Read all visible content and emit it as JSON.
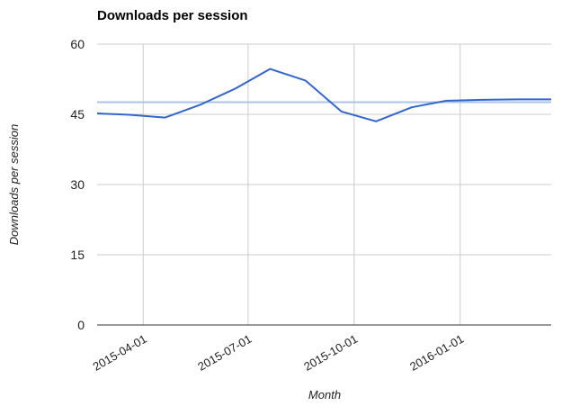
{
  "chart_data": {
    "type": "line",
    "title": "Downloads per session",
    "xlabel": "Month",
    "ylabel": "Downloads per session",
    "ylim": [
      0,
      60
    ],
    "yticks": [
      "0",
      "15",
      "30",
      "45",
      "60"
    ],
    "xlim": [
      "2015-02-20",
      "2016-03-20"
    ],
    "xticks": [
      "2015-04-01",
      "2015-07-01",
      "2015-10-01",
      "2016-01-01"
    ],
    "grid": true,
    "series": [
      {
        "color": "#3366cc",
        "x": [
          "2015-02-20",
          "2015-03-20",
          "2015-04-20",
          "2015-05-20",
          "2015-06-20",
          "2015-07-20",
          "2015-08-20",
          "2015-09-20",
          "2015-10-20",
          "2015-11-20",
          "2015-12-20",
          "2016-01-20",
          "2016-02-20",
          "2016-03-20"
        ],
        "y": [
          45.2,
          44.9,
          44.3,
          47.0,
          50.5,
          54.7,
          52.2,
          45.6,
          43.5,
          46.5,
          47.9,
          48.1,
          48.2,
          48.2
        ]
      }
    ],
    "reference_line": {
      "y": 47.6,
      "color": "#a9c4e8"
    }
  }
}
